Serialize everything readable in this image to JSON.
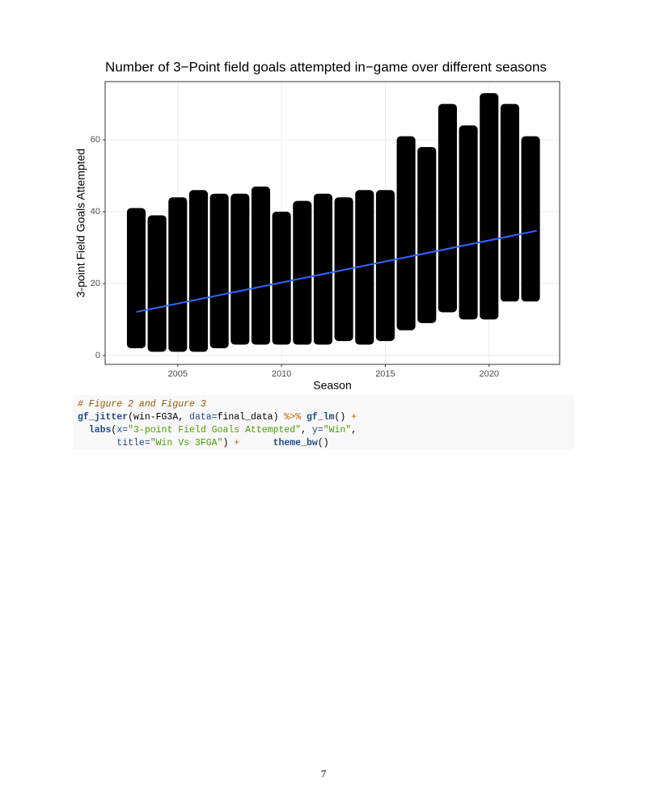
{
  "chart_data": {
    "type": "jitter",
    "title": "Number of 3−Point field goals attempted in−game over different seasons",
    "x_label": "Season",
    "y_label": "3-point Field Goals Attempted",
    "x": [
      2003,
      2004,
      2005,
      2006,
      2007,
      2008,
      2009,
      2010,
      2011,
      2012,
      2013,
      2014,
      2015,
      2016,
      2017,
      2018,
      2019,
      2020,
      2021,
      2022
    ],
    "ymin": [
      2,
      1,
      1,
      1,
      2,
      3,
      3,
      3,
      3,
      3,
      4,
      3,
      4,
      7,
      9,
      12,
      10,
      10,
      15,
      15
    ],
    "ymax": [
      41,
      39,
      44,
      46,
      45,
      45,
      47,
      40,
      43,
      45,
      44,
      46,
      46,
      61,
      58,
      70,
      64,
      73,
      70,
      61
    ],
    "color": "#000000",
    "trend": {
      "x": [
        2003,
        2022.3
      ],
      "y": [
        12.1,
        34.7
      ],
      "color": "#3366ff"
    },
    "xlim": [
      2001.5,
      2023.4
    ],
    "ylim": [
      -2.5,
      76.2
    ],
    "xticks": [
      2005,
      2010,
      2015,
      2020
    ],
    "yticks": [
      0,
      20,
      40,
      60
    ],
    "grid": true
  },
  "code": {
    "lines": [
      [
        {
          "text": "# Figure 2 and Figure 3",
          "color": "#8f5902",
          "italic": true
        }
      ],
      [
        {
          "text": "gf_jitter",
          "color": "#204a87",
          "bold": true
        },
        {
          "text": "(win-FG3A, ",
          "color": "#000000"
        },
        {
          "text": "data=",
          "color": "#204a87"
        },
        {
          "text": "final_data) ",
          "color": "#000000"
        },
        {
          "text": "%>%",
          "color": "#ce5c00"
        },
        {
          "text": " ",
          "color": "#000000"
        },
        {
          "text": "gf_lm",
          "color": "#204a87",
          "bold": true
        },
        {
          "text": "() ",
          "color": "#000000"
        },
        {
          "text": "+",
          "color": "#ce5c00"
        }
      ],
      [
        {
          "text": "  labs",
          "color": "#204a87",
          "bold": true
        },
        {
          "text": "(",
          "color": "#000000"
        },
        {
          "text": "x=",
          "color": "#204a87"
        },
        {
          "text": "\"3-point Field Goals Attempted\"",
          "color": "#4e9a06"
        },
        {
          "text": ", ",
          "color": "#000000"
        },
        {
          "text": "y=",
          "color": "#204a87"
        },
        {
          "text": "\"Win\"",
          "color": "#4e9a06"
        },
        {
          "text": ",",
          "color": "#000000"
        }
      ],
      [
        {
          "text": "       title=",
          "color": "#204a87"
        },
        {
          "text": "\"Win Vs 3FGA\"",
          "color": "#4e9a06"
        },
        {
          "text": ") ",
          "color": "#000000"
        },
        {
          "text": "+",
          "color": "#ce5c00"
        },
        {
          "text": "      ",
          "color": "#000000"
        },
        {
          "text": "theme_bw",
          "color": "#204a87",
          "bold": true
        },
        {
          "text": "()",
          "color": "#000000"
        }
      ]
    ]
  },
  "page_number": "7"
}
